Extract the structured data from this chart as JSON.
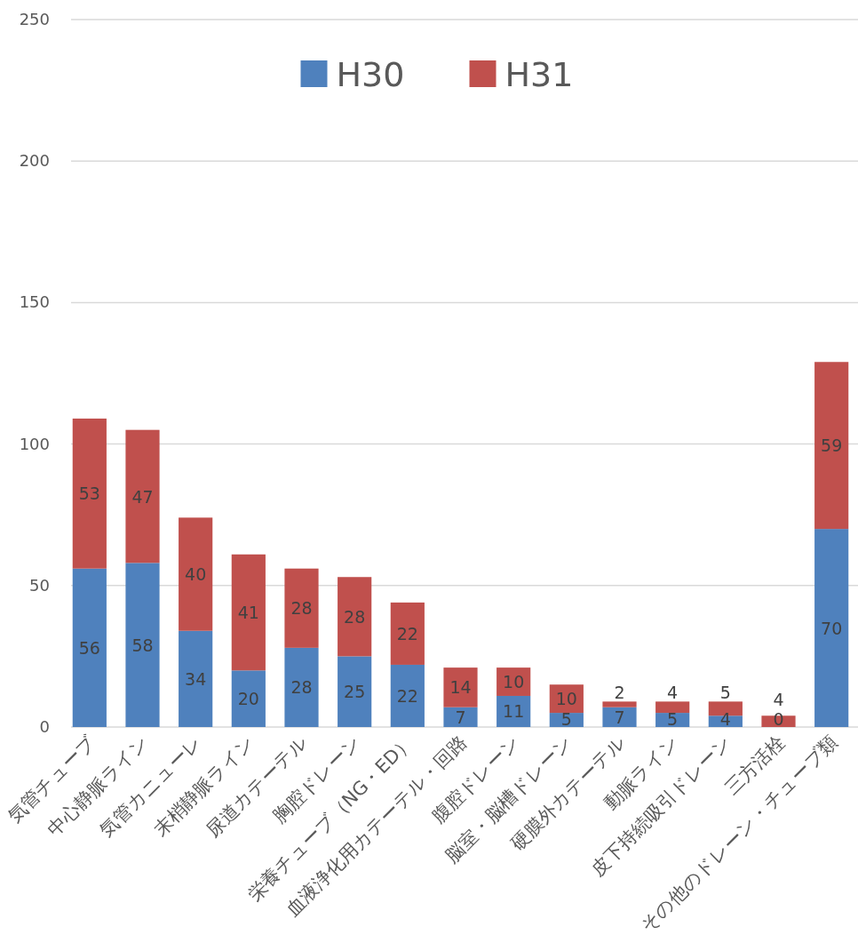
{
  "chart_data": {
    "type": "bar",
    "stacked": true,
    "categories": [
      "気管チューブ",
      "中心静脈ライン",
      "気管カニューレ",
      "末梢静脈ライン",
      "尿道カテーテル",
      "胸腔ドレーン",
      "栄養チューブ（NG・ED）",
      "血液浄化用カテーテル・回路",
      "腹腔ドレーン",
      "脳室・脳槽ドレーン",
      "硬膜外カテーテル",
      "動脈ライン",
      "皮下持続吸引ドレーン",
      "三方活栓",
      "その他のドレーン・チューブ類"
    ],
    "series": [
      {
        "name": "H30",
        "color": "#4f81bd",
        "values": [
          56,
          58,
          34,
          20,
          28,
          25,
          22,
          7,
          11,
          5,
          7,
          5,
          4,
          0,
          70
        ]
      },
      {
        "name": "H31",
        "color": "#c0504d",
        "values": [
          53,
          47,
          40,
          41,
          28,
          28,
          22,
          14,
          10,
          10,
          2,
          4,
          5,
          4,
          59
        ]
      }
    ],
    "ylim": [
      0,
      250
    ],
    "yticks": [
      0,
      50,
      100,
      150,
      200,
      250
    ],
    "grid": "y",
    "legend": "top",
    "data_labels": true
  }
}
